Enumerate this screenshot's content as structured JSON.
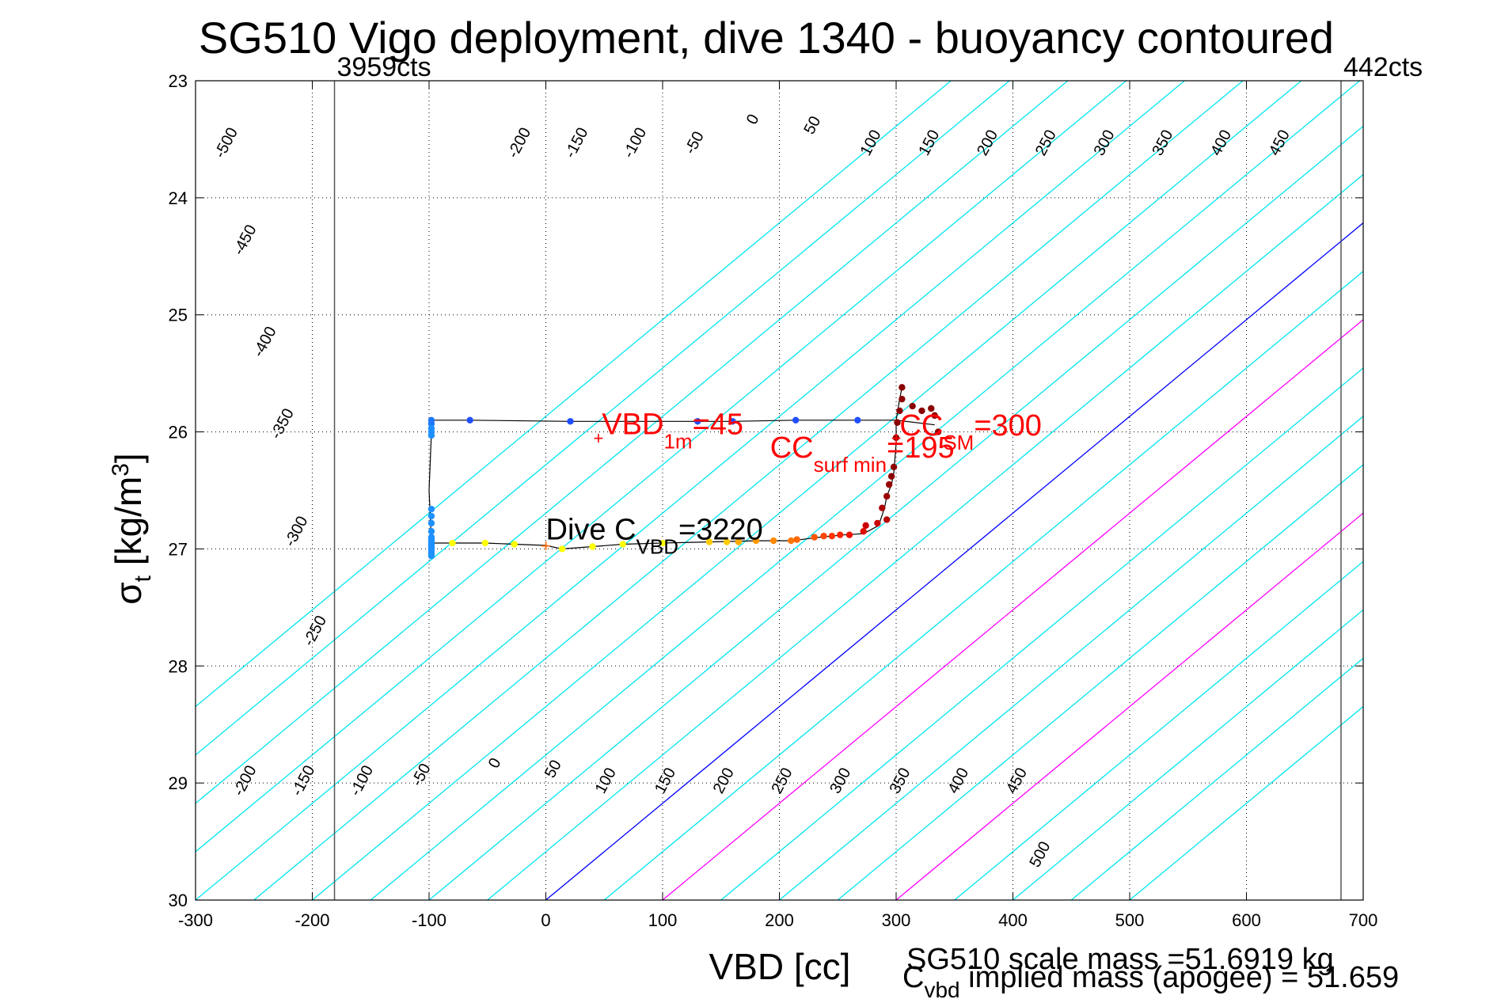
{
  "chart_data": {
    "type": "line",
    "title": "SG510 Vigo deployment, dive 1340 - buoyancy contoured",
    "xlabel": "VBD [cc]",
    "ylabel": {
      "sym": "σ",
      "sub": "t",
      "unit": " [kg/m",
      "sup": "3",
      "close": "]"
    },
    "xlim": [
      -300,
      700
    ],
    "ylim": [
      23,
      30
    ],
    "y_reversed": true,
    "grid": true,
    "xticks": [
      -300,
      -200,
      -100,
      0,
      100,
      200,
      300,
      400,
      500,
      600,
      700
    ],
    "xtick_labels": [
      "-300",
      "-200",
      "-100",
      "0",
      "100",
      "200",
      "300",
      "400",
      "500",
      "600",
      "700"
    ],
    "yticks": [
      23,
      24,
      25,
      26,
      27,
      28,
      29,
      30
    ],
    "ytick_labels": [
      "23",
      "24",
      "25",
      "26",
      "27",
      "28",
      "29",
      "30"
    ],
    "limit_lines": [
      {
        "x": -181,
        "label": "3959cts"
      },
      {
        "x": 681,
        "label": "442cts"
      }
    ],
    "buoyancy_contours": {
      "slope_cc_per_sigma": -121,
      "levels": [
        -500,
        -450,
        -400,
        -350,
        -300,
        -250,
        -200,
        -150,
        -100,
        -50,
        0,
        50,
        100,
        150,
        200,
        250,
        300,
        350,
        400,
        450,
        500
      ],
      "highlight": {
        "0": "#0000ff",
        "100": "#ff00ff",
        "300": "#ff00ff"
      },
      "default_color": "#00e5ee",
      "upper_labels": [
        {
          "level": -500,
          "x": -270,
          "y": 23.55,
          "text": "-500"
        },
        {
          "level": -450,
          "x": -254,
          "y": 24.38,
          "text": "-450"
        },
        {
          "level": -400,
          "x": -237,
          "y": 25.25,
          "text": "-400"
        },
        {
          "level": -350,
          "x": -222,
          "y": 25.95,
          "text": "-350"
        },
        {
          "level": -300,
          "x": -210,
          "y": 26.87,
          "text": "-300"
        },
        {
          "level": -250,
          "x": -194,
          "y": 27.72,
          "text": "-250"
        },
        {
          "level": -200,
          "x": -19,
          "y": 23.55,
          "text": "-200"
        },
        {
          "level": -150,
          "x": 30,
          "y": 23.55,
          "text": "-150"
        },
        {
          "level": -100,
          "x": 80,
          "y": 23.55,
          "text": "-100"
        },
        {
          "level": -50,
          "x": 131,
          "y": 23.55,
          "text": "-50"
        },
        {
          "level": 0,
          "x": 181,
          "y": 23.35,
          "text": "0"
        },
        {
          "level": 50,
          "x": 232,
          "y": 23.4,
          "text": "50"
        },
        {
          "level": 100,
          "x": 282,
          "y": 23.55,
          "text": "100"
        },
        {
          "level": 150,
          "x": 332,
          "y": 23.55,
          "text": "150"
        },
        {
          "level": 200,
          "x": 382,
          "y": 23.55,
          "text": "200"
        },
        {
          "level": 250,
          "x": 432,
          "y": 23.55,
          "text": "250"
        },
        {
          "level": 300,
          "x": 482,
          "y": 23.55,
          "text": "300"
        },
        {
          "level": 350,
          "x": 532,
          "y": 23.55,
          "text": "350"
        },
        {
          "level": 400,
          "x": 582,
          "y": 23.55,
          "text": "400"
        },
        {
          "level": 450,
          "x": 632,
          "y": 23.55,
          "text": "450"
        }
      ],
      "lower_labels": [
        {
          "level": -200,
          "x": -254,
          "y": 29.0,
          "text": "-200"
        },
        {
          "level": -150,
          "x": -204,
          "y": 29.0,
          "text": "-150"
        },
        {
          "level": -100,
          "x": -154,
          "y": 29.0,
          "text": "-100"
        },
        {
          "level": -50,
          "x": -103,
          "y": 28.95,
          "text": "-50"
        },
        {
          "level": 0,
          "x": -40,
          "y": 28.85,
          "text": "0"
        },
        {
          "level": 50,
          "x": 10,
          "y": 28.9,
          "text": "50"
        },
        {
          "level": 100,
          "x": 55,
          "y": 29.0,
          "text": "100"
        },
        {
          "level": 150,
          "x": 106,
          "y": 29.0,
          "text": "150"
        },
        {
          "level": 200,
          "x": 156,
          "y": 29.0,
          "text": "200"
        },
        {
          "level": 250,
          "x": 206,
          "y": 29.0,
          "text": "250"
        },
        {
          "level": 300,
          "x": 256,
          "y": 29.0,
          "text": "300"
        },
        {
          "level": 350,
          "x": 307,
          "y": 29.0,
          "text": "350"
        },
        {
          "level": 400,
          "x": 357,
          "y": 29.0,
          "text": "400"
        },
        {
          "level": 450,
          "x": 407,
          "y": 29.0,
          "text": "450"
        },
        {
          "level": 500,
          "x": 427,
          "y": 29.63,
          "text": "500"
        }
      ]
    },
    "series": [
      {
        "type": "path",
        "color": "#000000",
        "points": [
          [
            333,
            25.94
          ],
          [
            300,
            25.9
          ],
          [
            267,
            25.9
          ],
          [
            214,
            25.9
          ],
          [
            160,
            25.91
          ],
          [
            130,
            25.91
          ],
          [
            80,
            25.91
          ],
          [
            21,
            25.91
          ],
          [
            -65,
            25.9
          ],
          [
            -98,
            25.9
          ],
          [
            -98,
            26.0
          ],
          [
            -100,
            26.5
          ],
          [
            -98,
            26.95
          ],
          [
            -80,
            26.95
          ],
          [
            -52,
            26.95
          ],
          [
            -27,
            26.96
          ],
          [
            0,
            26.97
          ],
          [
            14,
            27.0
          ],
          [
            40,
            26.98
          ],
          [
            66,
            26.96
          ],
          [
            100,
            26.95
          ],
          [
            140,
            26.94
          ],
          [
            180,
            26.93
          ],
          [
            210,
            26.93
          ],
          [
            235,
            26.9
          ],
          [
            255,
            26.88
          ],
          [
            272,
            26.87
          ],
          [
            285,
            26.8
          ],
          [
            290,
            26.65
          ],
          [
            292,
            26.55
          ],
          [
            296,
            26.45
          ],
          [
            298,
            26.35
          ],
          [
            300,
            26.1
          ],
          [
            300,
            25.9
          ],
          [
            303,
            25.72
          ],
          [
            305,
            25.62
          ]
        ]
      },
      {
        "type": "points",
        "note": "down-cast samples",
        "colors": [
          "#1f4fff",
          "#1f4fff",
          "#1f4fff",
          "#1f4fff",
          "#1f4fff",
          "#1f4fff",
          "#1f78ff",
          "#1f78ff"
        ],
        "points": [
          [
            -65,
            25.9
          ],
          [
            21,
            25.91
          ],
          [
            130,
            25.91
          ],
          [
            214,
            25.9
          ],
          [
            267,
            25.9
          ],
          [
            160,
            25.91
          ],
          [
            -98,
            25.9
          ],
          [
            -98,
            25.93
          ]
        ]
      },
      {
        "type": "points",
        "note": "bottom samples",
        "colors": [
          "#1e90ff",
          "#1e90ff",
          "#1e90ff",
          "#1e90ff",
          "#1e90ff",
          "#1e90ff",
          "#1e90ff",
          "#1e90ff",
          "#1e90ff",
          "#1e90ff",
          "#1e90ff",
          "#1e90ff",
          "#1e90ff",
          "#1e90ff",
          "#1e90ff",
          "#1e90ff"
        ],
        "points": [
          [
            -98,
            25.97
          ],
          [
            -98,
            26.0
          ],
          [
            -98,
            26.03
          ],
          [
            -98,
            26.66
          ],
          [
            -98,
            26.72
          ],
          [
            -98,
            26.78
          ],
          [
            -98,
            26.85
          ],
          [
            -98,
            26.9
          ],
          [
            -98,
            26.92
          ],
          [
            -98,
            26.94
          ],
          [
            -98,
            26.96
          ],
          [
            -98,
            26.98
          ],
          [
            -98,
            27.0
          ],
          [
            -98,
            27.02
          ],
          [
            -98,
            27.04
          ],
          [
            -98,
            27.06
          ]
        ]
      },
      {
        "type": "points",
        "note": "up-cast samples",
        "colors": [
          "#ffff00",
          "#ffff00",
          "#ffff00",
          "#ffff00",
          "#ffff00",
          "#ffff00",
          "#ffff00",
          "#ffcc00",
          "#ffcc00",
          "#ffaa00",
          "#ff9900",
          "#ff8800",
          "#ff7700",
          "#ff6600",
          "#ff5500",
          "#ff4400",
          "#ff3300",
          "#ff2200",
          "#ee1100",
          "#dd1100",
          "#cc0000",
          "#cc0000",
          "#bb0000",
          "#aa0000",
          "#990000",
          "#990000",
          "#8b0000",
          "#8b0000",
          "#8b0000",
          "#8b0000",
          "#8b0000",
          "#8b0000",
          "#8b0000",
          "#8b0000",
          "#8b0000",
          "#8b0000",
          "#8b0000",
          "#8b0000"
        ],
        "points": [
          [
            -80,
            26.95
          ],
          [
            -52,
            26.95
          ],
          [
            -27,
            26.96
          ],
          [
            14,
            27.0
          ],
          [
            40,
            26.98
          ],
          [
            66,
            26.96
          ],
          [
            100,
            26.95
          ],
          [
            140,
            26.94
          ],
          [
            155,
            26.94
          ],
          [
            165,
            26.94
          ],
          [
            180,
            26.93
          ],
          [
            195,
            26.93
          ],
          [
            210,
            26.93
          ],
          [
            215,
            26.92
          ],
          [
            230,
            26.9
          ],
          [
            238,
            26.89
          ],
          [
            245,
            26.89
          ],
          [
            252,
            26.88
          ],
          [
            260,
            26.88
          ],
          [
            272,
            26.85
          ],
          [
            274,
            26.8
          ],
          [
            284,
            26.78
          ],
          [
            292,
            26.75
          ],
          [
            288,
            26.65
          ],
          [
            292,
            26.55
          ],
          [
            294,
            26.45
          ],
          [
            296,
            26.38
          ],
          [
            298,
            26.3
          ],
          [
            300,
            26.05
          ],
          [
            301,
            25.92
          ],
          [
            303,
            25.82
          ],
          [
            305,
            25.72
          ],
          [
            305,
            25.62
          ],
          [
            314,
            25.78
          ],
          [
            322,
            25.82
          ],
          [
            330,
            25.8
          ],
          [
            333,
            25.86
          ],
          [
            336,
            26.0
          ]
        ]
      }
    ],
    "markers": [
      {
        "x": 45,
        "y": 26.05,
        "symbol": "+",
        "color": "#ff0000"
      },
      {
        "x": 0,
        "y": 26.97,
        "symbol": "+",
        "color": "#ff6600"
      },
      {
        "x": 300,
        "y": 26.05,
        "symbol": "+",
        "color": "#ff0000"
      }
    ],
    "annotations": [
      {
        "id": "vbd1m",
        "x": 48,
        "y": 26.02,
        "color": "#ff0000",
        "main": "VBD",
        "sub": "1m",
        "rest": "=45"
      },
      {
        "id": "ccsurf",
        "x": 192,
        "y": 26.22,
        "color": "#ff0000",
        "main": "CC",
        "sub": "surf min",
        "rest": "=195"
      },
      {
        "id": "ccsm",
        "x": 303,
        "y": 26.03,
        "color": "#ff0000",
        "main": "CC",
        "sub": "SM",
        "rest": "=300"
      },
      {
        "id": "divecvbd",
        "x": 0,
        "y": 26.92,
        "color": "#000000",
        "main": "Dive C",
        "sub": "VBD",
        "rest": "=3220"
      }
    ],
    "footer": {
      "scale_mass": "SG510 scale mass =51.6919 kg",
      "implied_main": "C",
      "implied_sub": "vbd",
      "implied_rest": " implied mass (apogee) = 51.659"
    },
    "colors": {
      "grid": "#000000",
      "contour": "#00e5ee",
      "zero_contour": "#0000ff",
      "highlight_contour": "#ff00ff",
      "annotation": "#ff0000"
    }
  }
}
